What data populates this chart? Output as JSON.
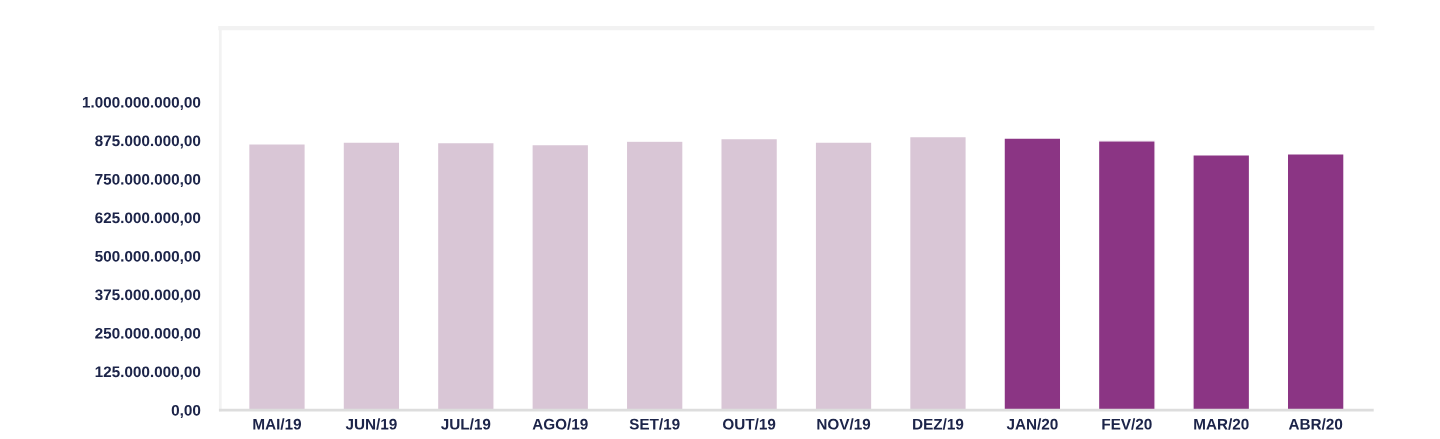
{
  "chart_data": {
    "type": "bar",
    "categories": [
      "MAI/19",
      "JUN/19",
      "JUL/19",
      "AGO/19",
      "SET/19",
      "OUT/19",
      "NOV/19",
      "DEZ/19",
      "JAN/20",
      "FEV/20",
      "MAR/20",
      "ABR/20"
    ],
    "values": [
      864000000,
      870000000,
      868000000,
      862000000,
      873000000,
      881000000,
      870000000,
      888000000,
      883000000,
      874000000,
      829000000,
      832000000
    ],
    "colors": [
      "#d9c6d6",
      "#d9c6d6",
      "#d9c6d6",
      "#d9c6d6",
      "#d9c6d6",
      "#d9c6d6",
      "#d9c6d6",
      "#d9c6d6",
      "#8b3584",
      "#8b3584",
      "#8b3584",
      "#8b3584"
    ],
    "ylim": [
      0,
      1240000000
    ],
    "yticks": [
      {
        "value": 0,
        "label": "0,00"
      },
      {
        "value": 125000000,
        "label": "125.000.000,00"
      },
      {
        "value": 250000000,
        "label": "250.000.000,00"
      },
      {
        "value": 375000000,
        "label": "375.000.000,00"
      },
      {
        "value": 500000000,
        "label": "500.000.000,00"
      },
      {
        "value": 625000000,
        "label": "625.000.000,00"
      },
      {
        "value": 750000000,
        "label": "750.000.000,00"
      },
      {
        "value": 875000000,
        "label": "875.000.000,00"
      },
      {
        "value": 1000000000,
        "label": "1.000.000.000,00"
      }
    ],
    "grid": false,
    "legend": false
  }
}
